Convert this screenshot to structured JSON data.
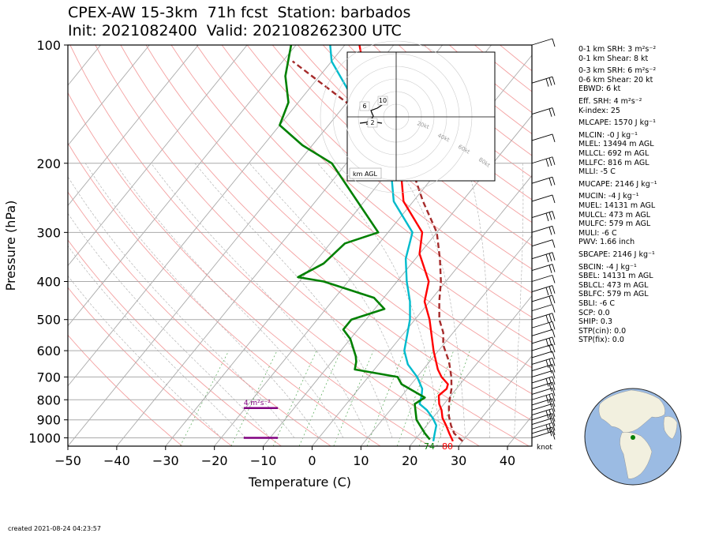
{
  "header": {
    "title_line1": "CPEX-AW 15-3km  71h fcst  Station: barbados",
    "title_line2": "Init: 2021082400  Valid: 202108262300 UTC"
  },
  "chart_data": {
    "type": "skew-t",
    "xlabel": "Temperature (C)",
    "ylabel": "Pressure (hPa)",
    "xlim": [
      -50,
      45
    ],
    "ylim": [
      1050,
      100
    ],
    "y_scale": "log",
    "x_ticks": [
      "−50",
      "−40",
      "−30",
      "−20",
      "−10",
      "0",
      "10",
      "20",
      "30",
      "40"
    ],
    "y_ticks": [
      "100",
      "200",
      "300",
      "400",
      "500",
      "600",
      "700",
      "800",
      "900",
      "1000"
    ],
    "series": [
      {
        "name": "temperature",
        "color": "#ff0000",
        "points": [
          [
            28,
            1020
          ],
          [
            26,
            975
          ],
          [
            24,
            930
          ],
          [
            22,
            890
          ],
          [
            20.5,
            850
          ],
          [
            19,
            820
          ],
          [
            17.5,
            780
          ],
          [
            18,
            750
          ],
          [
            17.5,
            730
          ],
          [
            15,
            700
          ],
          [
            13,
            670
          ],
          [
            9,
            600
          ],
          [
            3,
            500
          ],
          [
            -1,
            450
          ],
          [
            -3.5,
            400
          ],
          [
            -10,
            340
          ],
          [
            -13,
            300
          ],
          [
            -22,
            250
          ],
          [
            -29,
            200
          ],
          [
            -43,
            150
          ],
          [
            -57,
            100
          ]
        ]
      },
      {
        "name": "dewpoint",
        "color": "#00bbcc",
        "points": [
          [
            24,
            1020
          ],
          [
            23,
            975
          ],
          [
            22,
            930
          ],
          [
            20,
            890
          ],
          [
            17.5,
            850
          ],
          [
            15,
            820
          ],
          [
            14,
            780
          ],
          [
            13,
            750
          ],
          [
            10,
            700
          ],
          [
            6,
            650
          ],
          [
            3,
            600
          ],
          [
            -1,
            500
          ],
          [
            -4,
            450
          ],
          [
            -8,
            400
          ],
          [
            -12,
            350
          ],
          [
            -15,
            300
          ],
          [
            -24,
            250
          ],
          [
            -31,
            200
          ],
          [
            -45,
            150
          ],
          [
            -60,
            110
          ],
          [
            -63,
            100
          ]
        ]
      },
      {
        "name": "parcel",
        "color": "#a52a2a",
        "dashed": true,
        "points": [
          [
            30,
            1020
          ],
          [
            27,
            975
          ],
          [
            25,
            930
          ],
          [
            23,
            880
          ],
          [
            21,
            820
          ],
          [
            19,
            750
          ],
          [
            17,
            700
          ],
          [
            14,
            640
          ],
          [
            10,
            580
          ],
          [
            8,
            540
          ],
          [
            5,
            500
          ],
          [
            2,
            450
          ],
          [
            -1,
            400
          ],
          [
            -5,
            350
          ],
          [
            -10,
            300
          ],
          [
            -18,
            250
          ],
          [
            -27,
            200
          ],
          [
            -45,
            150
          ],
          [
            -68,
            110
          ]
        ]
      },
      {
        "name": "wetbulb-green",
        "color": "#008000",
        "points": [
          [
            23,
            1010
          ],
          [
            21,
            975
          ],
          [
            17,
            900
          ],
          [
            14,
            820
          ],
          [
            15,
            790
          ],
          [
            8,
            730
          ],
          [
            6,
            700
          ],
          [
            -4,
            670
          ],
          [
            -5,
            640
          ],
          [
            -6,
            620
          ],
          [
            -10,
            560
          ],
          [
            -13,
            530
          ],
          [
            -13,
            500
          ],
          [
            -8,
            470
          ],
          [
            -12,
            440
          ],
          [
            -25,
            400
          ],
          [
            -31,
            390
          ],
          [
            -28,
            360
          ],
          [
            -27,
            320
          ],
          [
            -22,
            300
          ],
          [
            -43,
            200
          ],
          [
            -52,
            180
          ],
          [
            -60,
            160
          ],
          [
            -62,
            140
          ],
          [
            -67,
            120
          ],
          [
            -71,
            100
          ]
        ]
      }
    ],
    "srh_bars": [
      {
        "label": "4 m²s⁻²",
        "t_start": -14,
        "t_end": -7,
        "p": 840
      },
      {
        "label": "",
        "t_start": -14,
        "t_end": -7,
        "p": 1000
      }
    ],
    "surface_labels": {
      "dewpoint": "74",
      "temperature": "80"
    },
    "barb_unit": "knot",
    "hodograph": {
      "unit_label": "km AGL",
      "ring_labels": [
        "20kt",
        "40kt",
        "60kt",
        "80kt"
      ],
      "height_labels": [
        "10",
        "6",
        "2"
      ]
    },
    "globe": {
      "station_marker": "barbados"
    }
  },
  "indices": [
    "0-1 km SRH: 3 m²s⁻²",
    "0-1 km Shear: 8 kt",
    "0-3 km SRH: 6 m²s⁻²",
    "0-6 km Shear: 20 kt",
    "EBWD: 6 kt",
    "Eff. SRH: 4 m²s⁻²",
    "K-index: 25",
    "MLCAPE: 1570 J kg⁻¹",
    "MLCIN: -0 J kg⁻¹",
    "MLEL: 13494 m AGL",
    "MLLCL: 692 m AGL",
    "MLLFC: 816 m AGL",
    "MLLI: -5 C",
    "MUCAPE: 2146 J kg⁻¹",
    "MUCIN: -4 J kg⁻¹",
    "MUEL: 14131 m AGL",
    "MULCL: 473 m AGL",
    "MULFC: 579 m AGL",
    "MULI: -6 C",
    "PWV: 1.66 inch",
    "SBCAPE: 2146 J kg⁻¹",
    "SBCIN: -4 J kg⁻¹",
    "SBEL: 14131 m AGL",
    "SBLCL: 473 m AGL",
    "SBLFC: 579 m AGL",
    "SBLI: -6 C",
    "SCP: 0.0",
    "SHIP: 0.3",
    "STP(cin): 0.0",
    "STP(fix): 0.0"
  ],
  "footer": {
    "created": "created 2021-08-24 04:23:57"
  }
}
